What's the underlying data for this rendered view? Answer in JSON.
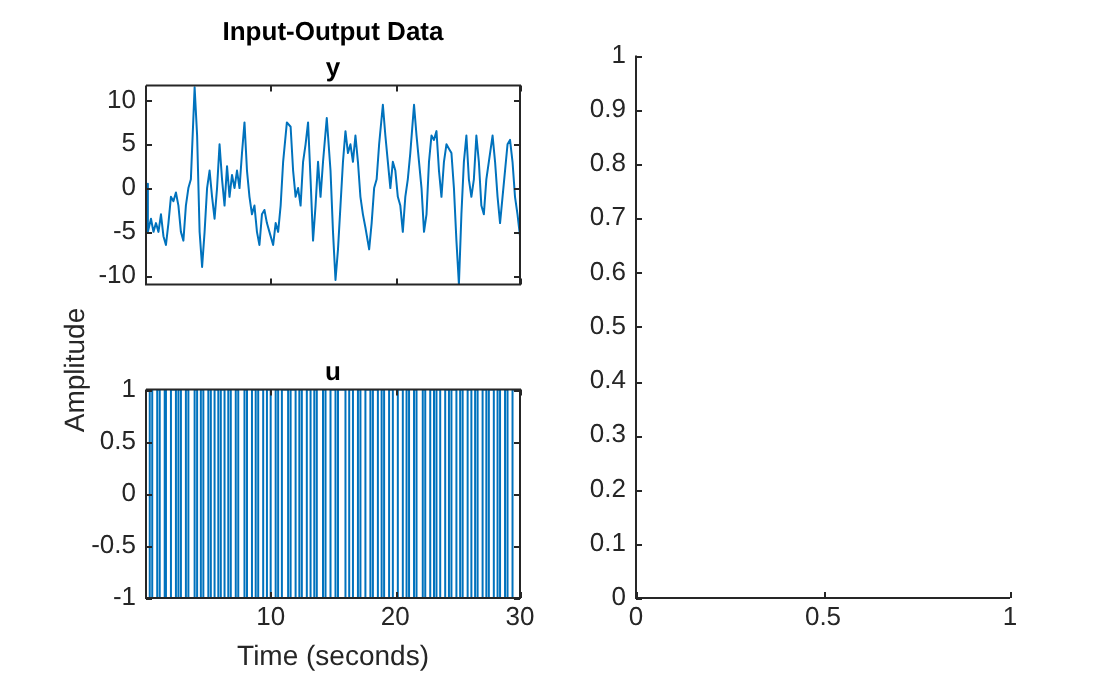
{
  "chart_data": [
    {
      "type": "line",
      "title": "Input-Output Data",
      "subtitle": "y",
      "ylabel": "Amplitude",
      "xlim": [
        0,
        30
      ],
      "xticks": [
        {
          "value": 10,
          "label": null
        },
        {
          "value": 20,
          "label": null
        },
        {
          "value": 30,
          "label": null
        }
      ],
      "ylim": [
        -11,
        11.7
      ],
      "yticks": [
        -10,
        -5,
        0,
        5,
        10
      ],
      "tick_labels": "y",
      "series": [
        {
          "color": "#0072bd",
          "x": [
            0,
            0.15,
            0.4,
            0.6,
            0.8,
            1.0,
            1.2,
            1.4,
            1.6,
            1.8,
            2.0,
            2.2,
            2.4,
            2.6,
            2.8,
            3.0,
            3.2,
            3.4,
            3.6,
            3.9,
            4.1,
            4.3,
            4.5,
            4.7,
            4.9,
            5.1,
            5.3,
            5.5,
            5.7,
            5.9,
            6.1,
            6.3,
            6.5,
            6.7,
            6.9,
            7.1,
            7.3,
            7.5,
            7.7,
            7.9,
            8.1,
            8.3,
            8.5,
            8.7,
            8.9,
            9.1,
            9.3,
            9.5,
            9.7,
            9.9,
            10.2,
            10.4,
            10.6,
            10.8,
            11.0,
            11.3,
            11.6,
            11.8,
            12.0,
            12.2,
            12.4,
            12.6,
            12.8,
            13.0,
            13.2,
            13.4,
            13.6,
            13.8,
            14.0,
            14.2,
            14.5,
            14.8,
            15.0,
            15.2,
            15.4,
            15.6,
            15.8,
            16.0,
            16.2,
            16.4,
            16.6,
            16.8,
            17.0,
            17.2,
            17.4,
            17.6,
            17.9,
            18.1,
            18.3,
            18.5,
            18.7,
            19.0,
            19.2,
            19.4,
            19.6,
            19.8,
            20.0,
            20.2,
            20.4,
            20.6,
            20.8,
            21.0,
            21.2,
            21.5,
            21.7,
            21.9,
            22.1,
            22.3,
            22.5,
            22.7,
            22.9,
            23.1,
            23.3,
            23.5,
            23.7,
            23.9,
            24.1,
            24.3,
            24.5,
            24.7,
            24.9,
            25.1,
            25.3,
            25.5,
            25.7,
            25.9,
            26.1,
            26.3,
            26.5,
            26.7,
            26.9,
            27.1,
            27.3,
            27.5,
            27.8,
            28.0,
            28.2,
            28.4,
            28.6,
            28.8,
            29.0,
            29.2,
            29.4,
            29.6,
            29.8,
            30
          ],
          "values": [
            0.5,
            -5,
            -3.5,
            -5,
            -4,
            -5,
            -3,
            -5.5,
            -6.5,
            -4,
            -1,
            -1.5,
            -0.5,
            -2,
            -5,
            -6,
            -2,
            0,
            1,
            11.5,
            6,
            -5,
            -9,
            -5,
            0,
            2,
            -1,
            -3.5,
            0,
            5,
            1,
            -2,
            2.5,
            -1,
            1.5,
            0,
            2,
            0,
            4,
            7.5,
            2,
            -1,
            -3,
            -2,
            -5,
            -6.5,
            -3,
            -2.5,
            -4,
            -5,
            -6.5,
            -4,
            -5,
            -2,
            3,
            7.5,
            7,
            2,
            -1,
            0,
            -2,
            3,
            5,
            7.5,
            1,
            -6,
            -2,
            3,
            -1,
            3,
            8,
            2,
            -5,
            -10.5,
            -7,
            -2,
            3,
            6.5,
            4,
            5,
            3,
            6,
            3,
            -1,
            -3,
            -4.5,
            -7,
            -4,
            0,
            1,
            5,
            9.5,
            6,
            3,
            0,
            3,
            2,
            -1,
            -2,
            -5,
            -1,
            1,
            4,
            9.5,
            6,
            3,
            0,
            -5,
            -3,
            3,
            6,
            5.5,
            6.5,
            2,
            -1,
            3,
            5,
            4.5,
            4,
            0,
            -6,
            -11,
            -3,
            3,
            6,
            1,
            -1,
            1,
            6,
            3,
            -2,
            -3,
            1,
            3,
            6,
            3,
            -1,
            -4,
            -1,
            2,
            5,
            5.5,
            3,
            -1,
            -3,
            -5.5
          ]
        }
      ]
    },
    {
      "type": "step",
      "title": "u",
      "xlabel": "Time (seconds)",
      "xlim": [
        0,
        30
      ],
      "xticks": [
        10,
        20,
        30
      ],
      "ylim": [
        -1,
        1
      ],
      "yticks": [
        -1,
        -0.5,
        0,
        0.5,
        1
      ],
      "series": [
        {
          "color": "#0072bd",
          "x": [
            0,
            0.3,
            0.5,
            0.9,
            1.1,
            1.5,
            1.6,
            2.0,
            2.4,
            2.6,
            2.8,
            3.2,
            3.4,
            3.9,
            4.1,
            4.4,
            4.6,
            5.0,
            5.2,
            5.5,
            5.8,
            6.0,
            6.3,
            6.6,
            6.8,
            7.2,
            7.4,
            7.9,
            8.1,
            8.5,
            8.8,
            9.0,
            9.4,
            9.7,
            10.0,
            10.4,
            10.6,
            10.9,
            11.4,
            11.6,
            12.0,
            12.3,
            12.5,
            12.9,
            13.2,
            13.5,
            13.7,
            14.2,
            14.4,
            14.8,
            15.2,
            15.4,
            16.0,
            16.3,
            16.6,
            17.0,
            17.2,
            17.6,
            18.0,
            18.2,
            18.6,
            18.9,
            19.1,
            19.5,
            19.8,
            20.2,
            20.6,
            20.9,
            21.1,
            21.5,
            21.7,
            22.2,
            22.4,
            22.8,
            23.1,
            23.3,
            23.6,
            24.0,
            24.3,
            24.5,
            24.9,
            25.2,
            25.4,
            25.8,
            26.1,
            26.4,
            26.6,
            27.0,
            27.3,
            27.5,
            27.9,
            28.2,
            28.4,
            28.8,
            29.0,
            29.4,
            29.6
          ],
          "values": [
            1,
            -1,
            1,
            -1,
            1,
            -1,
            1,
            -1,
            1,
            -1,
            1,
            -1,
            1,
            -1,
            1,
            -1,
            1,
            -1,
            1,
            -1,
            1,
            -1,
            1,
            -1,
            1,
            -1,
            1,
            -1,
            1,
            -1,
            1,
            -1,
            1,
            -1,
            1,
            -1,
            1,
            -1,
            1,
            -1,
            1,
            -1,
            1,
            -1,
            1,
            -1,
            1,
            -1,
            1,
            -1,
            1,
            -1,
            1,
            -1,
            1,
            -1,
            1,
            -1,
            1,
            -1,
            1,
            -1,
            1,
            -1,
            1,
            -1,
            1,
            -1,
            1,
            -1,
            1,
            -1,
            1,
            -1,
            1,
            -1,
            1,
            -1,
            1,
            -1,
            1,
            -1,
            1,
            -1,
            1,
            -1,
            1,
            -1,
            1,
            -1,
            1,
            -1,
            1,
            -1,
            1,
            -1,
            1
          ]
        }
      ]
    },
    {
      "type": "line",
      "xlim": [
        0,
        1
      ],
      "xticks": [
        0,
        0.5,
        1
      ],
      "ylim": [
        0,
        1
      ],
      "yticks": [
        0,
        0.1,
        0.2,
        0.3,
        0.4,
        0.5,
        0.6,
        0.7,
        0.8,
        0.9,
        1
      ]
    }
  ]
}
